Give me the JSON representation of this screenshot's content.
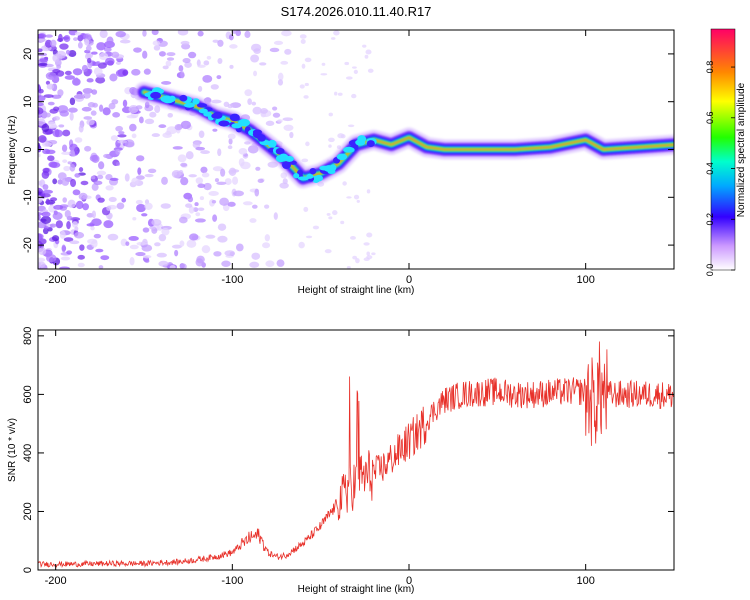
{
  "title": "S174.2026.010.11.40.R17",
  "chart_data": [
    {
      "type": "heatmap",
      "name": "spectrogram",
      "xlabel": "Height of straight line (km)",
      "ylabel": "Frequency (Hz)",
      "xlim": [
        -210,
        150
      ],
      "ylim": [
        -25,
        25
      ],
      "xticks": [
        -200,
        -100,
        0,
        100
      ],
      "yticks": [
        -20,
        -10,
        0,
        10,
        20
      ],
      "colorbar": {
        "label": "Normalized spectral amplitude",
        "range": [
          0.0,
          0.95
        ],
        "ticks": [
          0.0,
          0.2,
          0.4,
          0.6,
          0.8
        ],
        "tick_labels": [
          "0.0",
          "0.2",
          "0.4",
          "0.6",
          "0.8"
        ]
      },
      "ridge_points": [
        {
          "x": -150,
          "y": 12
        },
        {
          "x": -140,
          "y": 11
        },
        {
          "x": -130,
          "y": 10
        },
        {
          "x": -120,
          "y": 9
        },
        {
          "x": -110,
          "y": 7
        },
        {
          "x": -100,
          "y": 6
        },
        {
          "x": -90,
          "y": 4
        },
        {
          "x": -80,
          "y": 1
        },
        {
          "x": -70,
          "y": -2
        },
        {
          "x": -60,
          "y": -6
        },
        {
          "x": -50,
          "y": -5
        },
        {
          "x": -40,
          "y": -3
        },
        {
          "x": -30,
          "y": 1
        },
        {
          "x": -20,
          "y": 2
        },
        {
          "x": -10,
          "y": 1
        },
        {
          "x": 0,
          "y": 2.5
        },
        {
          "x": 10,
          "y": 0.5
        },
        {
          "x": 20,
          "y": 0
        },
        {
          "x": 40,
          "y": 0
        },
        {
          "x": 60,
          "y": 0
        },
        {
          "x": 80,
          "y": 0.5
        },
        {
          "x": 100,
          "y": 2
        },
        {
          "x": 110,
          "y": 0
        },
        {
          "x": 130,
          "y": 0.5
        },
        {
          "x": 150,
          "y": 1
        }
      ],
      "noise_region": {
        "x_from": -210,
        "x_to": -60,
        "note": "scattered low-amplitude noise"
      }
    },
    {
      "type": "line",
      "name": "snr",
      "xlabel": "Height of straight line (km)",
      "ylabel": "SNR (10 * v/v)",
      "xlim": [
        -210,
        150
      ],
      "ylim": [
        0,
        820
      ],
      "xticks": [
        -200,
        -100,
        0,
        100
      ],
      "yticks": [
        0,
        200,
        400,
        600,
        800
      ],
      "color": "#e8312a",
      "series": [
        {
          "name": "SNR",
          "x": [
            -210,
            -190,
            -170,
            -150,
            -130,
            -120,
            -110,
            -100,
            -95,
            -90,
            -85,
            -80,
            -75,
            -70,
            -60,
            -50,
            -45,
            -40,
            -35,
            -30,
            -25,
            -20,
            -15,
            -10,
            -5,
            0,
            5,
            10,
            15,
            20,
            25,
            30,
            40,
            50,
            60,
            70,
            80,
            90,
            100,
            105,
            107,
            110,
            120,
            130,
            140,
            150
          ],
          "y": [
            20,
            20,
            22,
            22,
            28,
            35,
            45,
            60,
            85,
            110,
            120,
            60,
            45,
            50,
            90,
            150,
            190,
            230,
            270,
            300,
            320,
            330,
            350,
            380,
            410,
            440,
            470,
            510,
            550,
            580,
            590,
            600,
            605,
            610,
            600,
            600,
            605,
            610,
            610,
            560,
            620,
            600,
            600,
            600,
            600,
            595
          ],
          "noise": 40
        }
      ]
    }
  ]
}
